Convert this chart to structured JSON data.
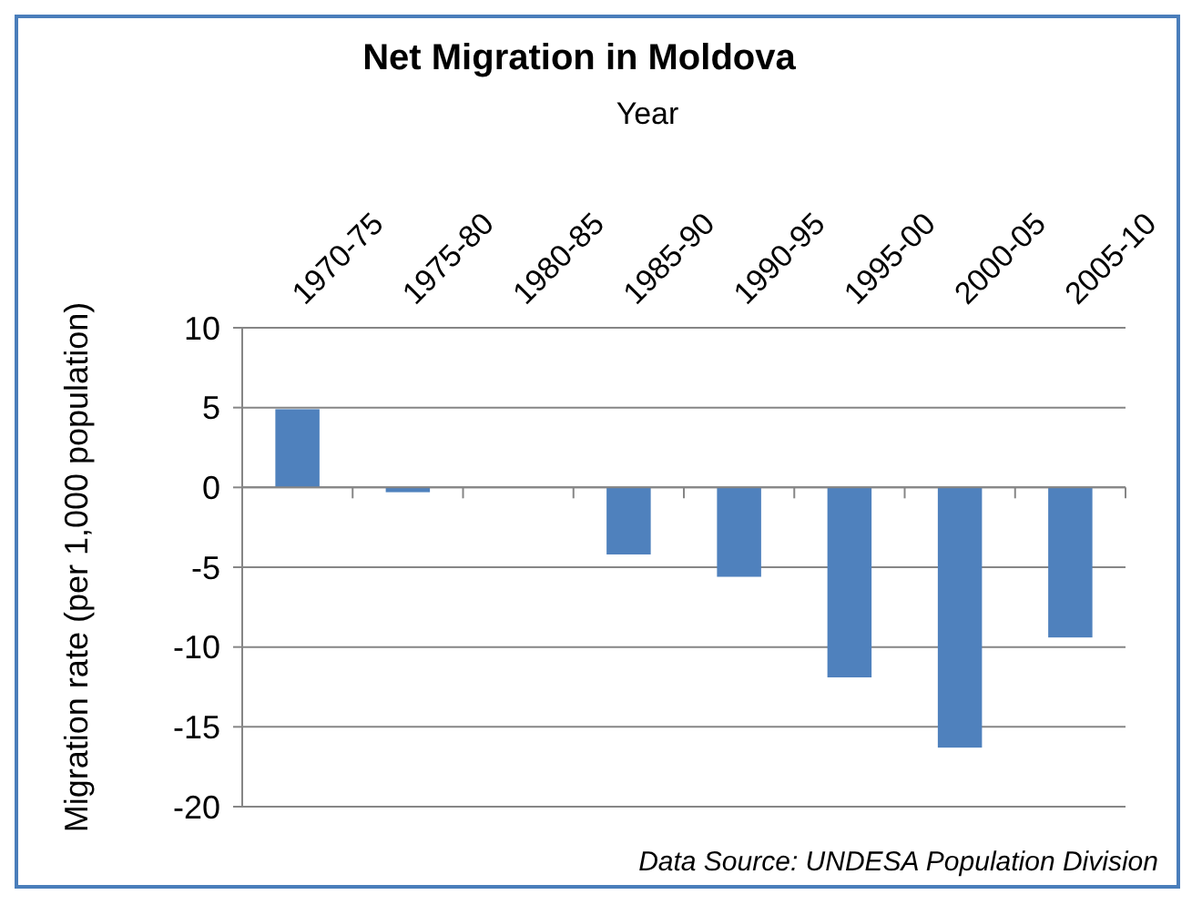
{
  "chart_data": {
    "type": "bar",
    "title": "Net Migration in Moldova",
    "xlabel": "Year",
    "ylabel": "Migration rate (per 1,000 population)",
    "categories": [
      "1970-75",
      "1975-80",
      "1980-85",
      "1985-90",
      "1990-95",
      "1995-00",
      "2000-05",
      "2005-10"
    ],
    "values": [
      4.9,
      -0.3,
      0,
      -4.2,
      -5.6,
      -11.9,
      -16.3,
      -9.4
    ],
    "color": "#4f81bd",
    "ylim": [
      -20,
      10
    ],
    "yticks": [
      -20,
      -15,
      -10,
      -5,
      0,
      5,
      10
    ],
    "grid": "y",
    "annotations": [
      "Data Source: UNDESA Population Division"
    ]
  }
}
